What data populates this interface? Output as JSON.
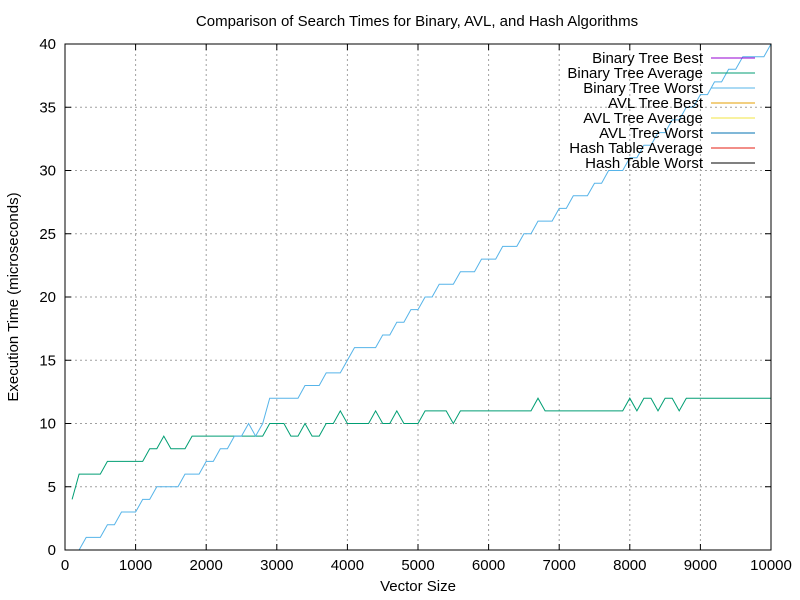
{
  "chart_data": {
    "type": "line",
    "title": "Comparison of Search Times for Binary, AVL, and Hash Algorithms",
    "xlabel": "Vector Size",
    "ylabel": "Execution Time (microseconds)",
    "xlim": [
      0,
      10000
    ],
    "ylim": [
      0,
      40
    ],
    "x_ticks": [
      0,
      1000,
      2000,
      3000,
      4000,
      5000,
      6000,
      7000,
      8000,
      9000,
      10000
    ],
    "y_ticks": [
      0,
      5,
      10,
      15,
      20,
      25,
      30,
      35,
      40
    ],
    "grid": true,
    "legend_position": "top-right",
    "x": [
      100,
      200,
      300,
      400,
      500,
      600,
      700,
      800,
      900,
      1000,
      1100,
      1200,
      1300,
      1400,
      1500,
      1600,
      1700,
      1800,
      1900,
      2000,
      2100,
      2200,
      2300,
      2400,
      2500,
      2600,
      2700,
      2800,
      2900,
      3000,
      3100,
      3200,
      3300,
      3400,
      3500,
      3600,
      3700,
      3800,
      3900,
      4000,
      4100,
      4200,
      4300,
      4400,
      4500,
      4600,
      4700,
      4800,
      4900,
      5000,
      5100,
      5200,
      5300,
      5400,
      5500,
      5600,
      5700,
      5800,
      5900,
      6000,
      6100,
      6200,
      6300,
      6400,
      6500,
      6600,
      6700,
      6800,
      6900,
      7000,
      7100,
      7200,
      7300,
      7400,
      7500,
      7600,
      7700,
      7800,
      7900,
      8000,
      8100,
      8200,
      8300,
      8400,
      8500,
      8600,
      8700,
      8800,
      8900,
      9000,
      9100,
      9200,
      9300,
      9400,
      9500,
      9600,
      9700,
      9800,
      9900,
      10000
    ],
    "series": [
      {
        "name": "Binary Tree Best",
        "color": "#9400d3",
        "values": [
          0,
          0,
          0,
          0,
          0,
          0,
          0,
          0,
          0,
          0,
          0,
          0,
          0,
          0,
          0,
          0,
          0,
          0,
          0,
          0,
          0,
          0,
          0,
          0,
          0,
          0,
          0,
          0,
          0,
          0,
          0,
          0,
          0,
          0,
          0,
          0,
          0,
          0,
          0,
          0,
          0,
          0,
          0,
          0,
          0,
          0,
          0,
          0,
          0,
          0,
          0,
          0,
          0,
          0,
          0,
          0,
          0,
          0,
          0,
          0,
          0,
          0,
          0,
          0,
          0,
          0,
          0,
          0,
          0,
          0,
          0,
          0,
          0,
          0,
          0,
          0,
          0,
          0,
          0,
          0,
          0,
          0,
          0,
          0,
          0,
          0,
          0,
          0,
          0,
          0,
          0,
          0,
          0,
          0,
          0,
          0,
          0,
          0,
          0,
          0
        ]
      },
      {
        "name": "Binary Tree Average",
        "color": "#009e73",
        "values": [
          4,
          6,
          6,
          6,
          6,
          7,
          7,
          7,
          7,
          7,
          7,
          8,
          8,
          9,
          8,
          8,
          8,
          9,
          9,
          9,
          9,
          9,
          9,
          9,
          9,
          9,
          9,
          9,
          10,
          10,
          10,
          9,
          9,
          10,
          9,
          9,
          10,
          10,
          11,
          10,
          10,
          10,
          10,
          11,
          10,
          10,
          11,
          10,
          10,
          10,
          11,
          11,
          11,
          11,
          10,
          11,
          11,
          11,
          11,
          11,
          11,
          11,
          11,
          11,
          11,
          11,
          12,
          11,
          11,
          11,
          11,
          11,
          11,
          11,
          11,
          11,
          11,
          11,
          11,
          12,
          11,
          12,
          12,
          11,
          12,
          12,
          11,
          12,
          12,
          12,
          12,
          12,
          12,
          12,
          12,
          12,
          12,
          12,
          12,
          12
        ]
      },
      {
        "name": "Binary Tree Worst",
        "color": "#56b4e9",
        "values": [
          0,
          0,
          1,
          1,
          1,
          2,
          2,
          3,
          3,
          3,
          4,
          4,
          5,
          5,
          5,
          5,
          6,
          6,
          6,
          7,
          7,
          8,
          8,
          9,
          9,
          10,
          9,
          10,
          12,
          12,
          12,
          12,
          12,
          13,
          13,
          13,
          14,
          14,
          14,
          15,
          16,
          16,
          16,
          16,
          17,
          17,
          18,
          18,
          19,
          19,
          20,
          20,
          21,
          21,
          21,
          22,
          22,
          22,
          23,
          23,
          23,
          24,
          24,
          24,
          25,
          25,
          26,
          26,
          26,
          27,
          27,
          28,
          28,
          28,
          29,
          29,
          30,
          30,
          30,
          31,
          31,
          32,
          32,
          33,
          33,
          34,
          34,
          35,
          35,
          36,
          36,
          37,
          37,
          38,
          38,
          39,
          39,
          39,
          39,
          40
        ]
      },
      {
        "name": "AVL Tree Best",
        "color": "#e69f00",
        "values": [
          0,
          0,
          0,
          0,
          0,
          0,
          0,
          0,
          0,
          0,
          0,
          0,
          0,
          0,
          0,
          0,
          0,
          0,
          0,
          0,
          0,
          0,
          0,
          0,
          0,
          0,
          0,
          0,
          0,
          0,
          0,
          0,
          0,
          0,
          0,
          0,
          0,
          0,
          0,
          0,
          0,
          0,
          0,
          0,
          0,
          0,
          0,
          0,
          0,
          0,
          0,
          0,
          0,
          0,
          0,
          0,
          0,
          0,
          0,
          0,
          0,
          0,
          0,
          0,
          0,
          0,
          0,
          0,
          0,
          0,
          0,
          0,
          0,
          0,
          0,
          0,
          0,
          0,
          0,
          0,
          0,
          0,
          0,
          0,
          0,
          0,
          0,
          0,
          0,
          0,
          0,
          0,
          0,
          0,
          0,
          0,
          0,
          0,
          0,
          0
        ]
      },
      {
        "name": "AVL Tree Average",
        "color": "#f0e442",
        "values": [
          0,
          0,
          0,
          0,
          0,
          0,
          0,
          0,
          0,
          0,
          0,
          0,
          0,
          0,
          0,
          0,
          0,
          0,
          0,
          0,
          0,
          0,
          0,
          0,
          0,
          0,
          0,
          0,
          0,
          0,
          0,
          0,
          0,
          0,
          0,
          0,
          0,
          0,
          0,
          0,
          0,
          0,
          0,
          0,
          0,
          0,
          0,
          0,
          0,
          0,
          0,
          0,
          0,
          0,
          0,
          0,
          0,
          0,
          0,
          0,
          0,
          0,
          0,
          0,
          0,
          0,
          0,
          0,
          0,
          0,
          0,
          0,
          0,
          0,
          0,
          0,
          0,
          0,
          0,
          0,
          0,
          0,
          0,
          0,
          0,
          0,
          0,
          0,
          0,
          0,
          0,
          0,
          0,
          0,
          0,
          0,
          0,
          0,
          0,
          0
        ]
      },
      {
        "name": "AVL Tree Worst",
        "color": "#0072b2",
        "values": [
          0,
          0,
          0,
          0,
          0,
          0,
          0,
          0,
          0,
          0,
          0,
          0,
          0,
          0,
          0,
          0,
          0,
          0,
          0,
          0,
          0,
          0,
          0,
          0,
          0,
          0,
          0,
          0,
          0,
          0,
          0,
          0,
          0,
          0,
          0,
          0,
          0,
          0,
          0,
          0,
          0,
          0,
          0,
          0,
          0,
          0,
          0,
          0,
          0,
          0,
          0,
          0,
          0,
          0,
          0,
          0,
          0,
          0,
          0,
          0,
          0,
          0,
          0,
          0,
          0,
          0,
          0,
          0,
          0,
          0,
          0,
          0,
          0,
          0,
          0,
          0,
          0,
          0,
          0,
          0,
          0,
          0,
          0,
          0,
          0,
          0,
          0,
          0,
          0,
          0,
          0,
          0,
          0,
          0,
          0,
          0,
          0,
          0,
          0,
          0
        ]
      },
      {
        "name": "Hash Table Average",
        "color": "#e51e10",
        "values": [
          0,
          0,
          0,
          0,
          0,
          0,
          0,
          0,
          0,
          0,
          0,
          0,
          0,
          0,
          0,
          0,
          0,
          0,
          0,
          0,
          0,
          0,
          0,
          0,
          0,
          0,
          0,
          0,
          0,
          0,
          0,
          0,
          0,
          0,
          0,
          0,
          0,
          0,
          0,
          0,
          0,
          0,
          0,
          0,
          0,
          0,
          0,
          0,
          0,
          0,
          0,
          0,
          0,
          0,
          0,
          0,
          0,
          0,
          0,
          0,
          0,
          0,
          0,
          0,
          0,
          0,
          0,
          0,
          0,
          0,
          0,
          0,
          0,
          0,
          0,
          0,
          0,
          0,
          0,
          0,
          0,
          0,
          0,
          0,
          0,
          0,
          0,
          0,
          0,
          0,
          0,
          0,
          0,
          0,
          0,
          0,
          0,
          0,
          0,
          0
        ]
      },
      {
        "name": "Hash Table Worst",
        "color": "#000000",
        "values": [
          0,
          0,
          0,
          0,
          0,
          0,
          0,
          0,
          0,
          0,
          0,
          0,
          0,
          0,
          0,
          0,
          0,
          0,
          0,
          0,
          0,
          0,
          0,
          0,
          0,
          0,
          0,
          0,
          0,
          0,
          0,
          0,
          0,
          0,
          0,
          0,
          0,
          0,
          0,
          0,
          0,
          0,
          0,
          0,
          0,
          0,
          0,
          0,
          0,
          0,
          0,
          0,
          0,
          0,
          0,
          0,
          0,
          0,
          0,
          0,
          0,
          0,
          0,
          0,
          0,
          0,
          0,
          0,
          0,
          0,
          0,
          0,
          0,
          0,
          0,
          0,
          0,
          0,
          0,
          0,
          0,
          0,
          0,
          0,
          0,
          0,
          0,
          0,
          0,
          0,
          0,
          0,
          0,
          0,
          0,
          0,
          0,
          0,
          0,
          0
        ]
      }
    ]
  }
}
